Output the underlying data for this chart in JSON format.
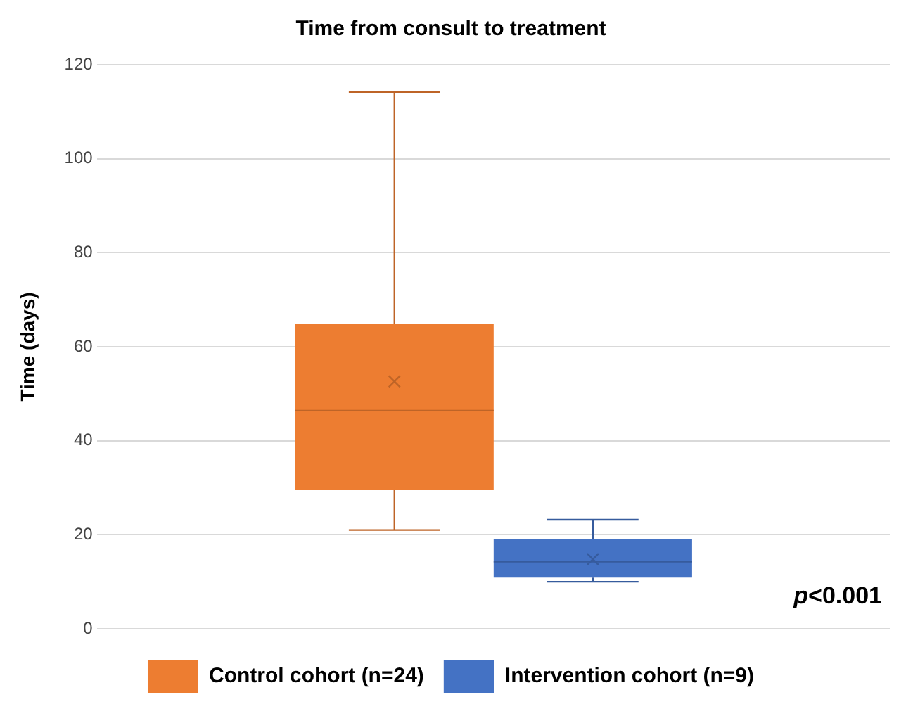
{
  "chart_data": {
    "type": "box",
    "title": "Time from consult to treatment",
    "ylabel": "Time (days)",
    "categories": [
      null
    ],
    "series": [
      {
        "name": "Control cohort (n=24)",
        "color": "#ed7d31",
        "boxes": [
          {
            "low": 21,
            "q1": 29.6,
            "median": 46.4,
            "q3": 64.9,
            "high": 114.2,
            "mean": 52.6
          }
        ]
      },
      {
        "name": "Intervention cohort (n=9)",
        "color": "#4472c4",
        "boxes": [
          {
            "low": 10,
            "q1": 10.9,
            "median": 14.3,
            "q3": 19.1,
            "high": 23.2,
            "mean": 14.8
          }
        ]
      }
    ],
    "ylim": [
      0,
      120
    ],
    "yticks": [
      0,
      20,
      40,
      60,
      80,
      100,
      120
    ],
    "grid": "y",
    "legend": "bottom",
    "marker": "cross",
    "annotations": [
      "p<0.001"
    ]
  }
}
